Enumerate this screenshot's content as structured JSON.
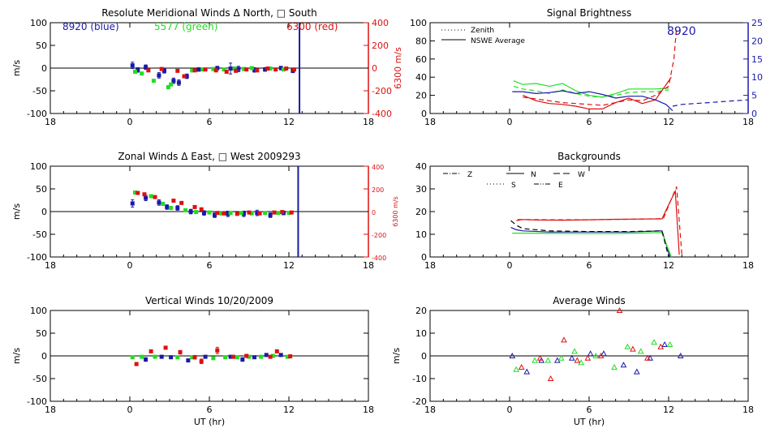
{
  "colors": {
    "blue": "#1a1aa8",
    "green": "#22dd22",
    "red": "#dd1111",
    "axis": "#000000"
  },
  "chart_data": [
    {
      "id": "meridional",
      "type": "scatter",
      "title": "Resolute Meridional Winds Δ North, □ South",
      "xlabel": "",
      "ylabel": "m/s",
      "y2label": "6300 m/s",
      "xticks": [
        "18",
        "0",
        "6",
        "12",
        "18"
      ],
      "yticks": [
        "-100",
        "-50",
        "0",
        "50",
        "100"
      ],
      "y2ticks": [
        "-400",
        "-200",
        "0",
        "200",
        "400"
      ],
      "xlim": [
        -6,
        18
      ],
      "ylim": [
        -100,
        100
      ],
      "y2lim": [
        -400,
        400
      ],
      "legend": [
        "8920 (blue)",
        "5577 (green)",
        "6300 (red)"
      ],
      "vline_x": 12.8,
      "series": [
        {
          "color": "blue",
          "x": [
            0.2,
            0.6,
            1.2,
            2.2,
            2.6,
            3.3,
            3.7,
            4.3,
            5.2,
            6.6,
            7.6,
            8.2,
            9.4,
            10.2,
            11.4,
            12.3
          ],
          "y": [
            6,
            -4,
            2,
            -16,
            -6,
            -28,
            -32,
            -18,
            -3,
            0,
            -1,
            -2,
            -4,
            -3,
            0,
            -6
          ],
          "err": [
            7,
            5,
            5,
            6,
            5,
            6,
            6,
            5,
            4,
            4,
            12,
            6,
            5,
            4,
            4,
            4
          ]
        },
        {
          "color": "green",
          "x": [
            0.4,
            0.9,
            1.8,
            2.9,
            3.1,
            4.7,
            5.5,
            6.3,
            7.1,
            7.9,
            8.6,
            9.2,
            10.6,
            11.6
          ],
          "y": [
            -8,
            -12,
            -28,
            -42,
            -36,
            -5,
            -3,
            -2,
            -3,
            -1,
            -2,
            0,
            -1,
            -3
          ],
          "err": [
            3,
            3,
            3,
            3,
            3,
            3,
            3,
            3,
            3,
            3,
            3,
            3,
            3,
            3
          ]
        },
        {
          "color": "red",
          "x": [
            1.4,
            2.4,
            3.6,
            4.1,
            4.9,
            5.7,
            6.5,
            7.3,
            8.0,
            8.8,
            9.6,
            10.4,
            11.0,
            11.8,
            12.4
          ],
          "y": [
            -5,
            -2,
            -6,
            -18,
            -5,
            -3,
            -5,
            -8,
            -6,
            -3,
            -5,
            -1,
            -3,
            -1,
            -3
          ],
          "err": [
            3,
            3,
            3,
            3,
            3,
            3,
            3,
            3,
            3,
            3,
            3,
            3,
            3,
            3,
            3
          ]
        }
      ]
    },
    {
      "id": "zonal",
      "type": "scatter",
      "title": "Zonal Winds Δ East, □ West 2009293",
      "xlabel": "",
      "ylabel": "m/s",
      "y2label": "6300 m/s",
      "xticks": [
        "18",
        "0",
        "6",
        "12",
        "18"
      ],
      "yticks": [
        "-100",
        "-50",
        "0",
        "50",
        "100"
      ],
      "y2ticks": [
        "-400",
        "-200",
        "0",
        "200",
        "400"
      ],
      "xlim": [
        -6,
        18
      ],
      "ylim": [
        -100,
        100
      ],
      "y2lim": [
        -400,
        400
      ],
      "vline_x": 12.7,
      "series": [
        {
          "color": "blue",
          "x": [
            0.2,
            1.2,
            2.2,
            2.8,
            3.6,
            4.6,
            5.6,
            6.4,
            7.4,
            8.6,
            9.6,
            10.6,
            11.6
          ],
          "y": [
            18,
            30,
            20,
            10,
            8,
            0,
            -3,
            -8,
            -5,
            -5,
            -3,
            -8,
            -3
          ],
          "err": [
            8,
            6,
            6,
            5,
            5,
            5,
            5,
            5,
            6,
            6,
            6,
            5,
            4
          ]
        },
        {
          "color": "green",
          "x": [
            0.4,
            1.6,
            2.5,
            3.1,
            4.2,
            5.0,
            6.0,
            6.9,
            7.6,
            8.4,
            9.2,
            10.2,
            11.2,
            12.0
          ],
          "y": [
            42,
            34,
            17,
            8,
            3,
            -1,
            -2,
            -4,
            -3,
            -3,
            -4,
            -3,
            -3,
            -3
          ],
          "err": [
            3,
            3,
            3,
            3,
            3,
            3,
            3,
            3,
            3,
            3,
            3,
            3,
            3,
            3
          ]
        },
        {
          "color": "red",
          "x": [
            0.6,
            1.1,
            1.9,
            3.3,
            3.9,
            4.9,
            5.4,
            6.6,
            7.1,
            8.1,
            9.0,
            9.8,
            10.9,
            11.5,
            12.2
          ],
          "y": [
            41,
            38,
            32,
            24,
            19,
            10,
            5,
            -3,
            -4,
            -5,
            -2,
            -4,
            -2,
            -1,
            -2
          ],
          "err": [
            3,
            3,
            3,
            3,
            3,
            3,
            3,
            3,
            3,
            3,
            3,
            3,
            3,
            3,
            3
          ]
        }
      ]
    },
    {
      "id": "vertical",
      "type": "scatter",
      "title": "Vertical Winds 10/20/2009",
      "xlabel": "UT (hr)",
      "ylabel": "m/s",
      "xticks": [
        "18",
        "0",
        "6",
        "12",
        "18"
      ],
      "yticks": [
        "-100",
        "-50",
        "0",
        "50",
        "100"
      ],
      "xlim": [
        -6,
        18
      ],
      "ylim": [
        -100,
        100
      ],
      "series": [
        {
          "color": "blue",
          "x": [
            1.2,
            2.4,
            3.1,
            4.4,
            5.7,
            7.6,
            8.5,
            9.4,
            10.3,
            11.4
          ],
          "y": [
            -8,
            -2,
            -3,
            -10,
            -2,
            -2,
            -8,
            -3,
            2,
            2
          ],
          "err": [
            4,
            3,
            3,
            3,
            3,
            3,
            4,
            3,
            3,
            3
          ]
        },
        {
          "color": "green",
          "x": [
            0.2,
            0.9,
            1.9,
            3.6,
            4.7,
            6.3,
            7.2,
            8.1,
            9.0,
            9.9,
            10.8,
            11.9
          ],
          "y": [
            -3,
            -2,
            -2,
            -3,
            -3,
            -5,
            -3,
            -3,
            -2,
            -2,
            0,
            -2
          ],
          "err": [
            2,
            2,
            2,
            2,
            2,
            2,
            2,
            2,
            2,
            2,
            2,
            2
          ]
        },
        {
          "color": "red",
          "x": [
            0.5,
            1.6,
            2.7,
            3.8,
            4.9,
            5.4,
            6.6,
            7.8,
            8.8,
            10.6,
            11.1,
            12.1
          ],
          "y": [
            -18,
            10,
            18,
            8,
            -3,
            -12,
            12,
            -2,
            0,
            -2,
            10,
            -1
          ],
          "err": [
            3,
            3,
            3,
            4,
            4,
            5,
            7,
            3,
            3,
            3,
            3,
            3
          ]
        }
      ]
    },
    {
      "id": "brightness",
      "type": "line",
      "title": "Signal Brightness",
      "xlabel": "",
      "ylabel": "",
      "xticks": [
        "18",
        "0",
        "6",
        "12",
        "18"
      ],
      "yticks": [
        "0",
        "20",
        "40",
        "60",
        "80",
        "100"
      ],
      "y2ticks": [
        "0",
        "5",
        "10",
        "15",
        "20",
        "25"
      ],
      "xlim": [
        -6,
        18
      ],
      "ylim": [
        0,
        100
      ],
      "y2lim": [
        0,
        25
      ],
      "legend": [
        "Zenith",
        "NSWE Average"
      ],
      "annotation": "8920",
      "series": [
        {
          "color": "green",
          "style": "solid",
          "x": [
            0.3,
            1,
            2,
            3,
            4,
            5,
            6,
            7,
            8,
            9,
            10,
            11,
            12
          ],
          "y": [
            36,
            32,
            33,
            30,
            33,
            25,
            20,
            18,
            22,
            27,
            27,
            27,
            28
          ]
        },
        {
          "color": "green",
          "style": "dash",
          "x": [
            0.3,
            1,
            2,
            3,
            4,
            5,
            6,
            7,
            8,
            9,
            10,
            11,
            12
          ],
          "y": [
            30,
            27,
            25,
            22,
            26,
            22,
            19,
            18,
            20,
            23,
            24,
            24,
            26
          ]
        },
        {
          "color": "red",
          "style": "solid",
          "x": [
            1,
            2,
            3,
            4,
            5,
            6,
            7,
            8,
            9,
            10,
            11,
            12.2
          ],
          "y": [
            20,
            14,
            11,
            10,
            8,
            5,
            5,
            12,
            17,
            11,
            15,
            40
          ]
        },
        {
          "color": "red",
          "style": "dash",
          "x": [
            1,
            2,
            3,
            4,
            5,
            6,
            7,
            8,
            9,
            10,
            11,
            12,
            12.4,
            12.6
          ],
          "y": [
            18,
            16,
            14,
            12,
            11,
            10,
            9,
            12,
            15,
            14,
            20,
            30,
            60,
            95
          ]
        },
        {
          "color": "blue",
          "style": "solid",
          "x": [
            0.2,
            1,
            2,
            3,
            4,
            5,
            6,
            7,
            8,
            9,
            10,
            11,
            11.8,
            12.3
          ],
          "y": [
            24,
            24,
            22,
            23,
            25,
            22,
            24,
            21,
            17,
            19,
            19,
            15,
            10,
            3
          ]
        },
        {
          "color": "blue",
          "style": "dash",
          "x": [
            12.3,
            13,
            14,
            15,
            16,
            17,
            18
          ],
          "y": [
            8,
            10,
            11,
            12,
            13,
            14,
            15
          ]
        }
      ]
    },
    {
      "id": "backgrounds",
      "type": "line",
      "title": "Backgrounds",
      "xlabel": "",
      "ylabel": "",
      "xticks": [
        "18",
        "0",
        "6",
        "12",
        "18"
      ],
      "yticks": [
        "0",
        "10",
        "20",
        "30",
        "40"
      ],
      "xlim": [
        -6,
        18
      ],
      "ylim": [
        0,
        40
      ],
      "legend": [
        "Z",
        "N",
        "W",
        "S",
        "E"
      ],
      "series": [
        {
          "color": "red",
          "style": "solid",
          "x": [
            0.5,
            1,
            2,
            4,
            6,
            8,
            10,
            11.5,
            12,
            12.5,
            12.8
          ],
          "y": [
            16,
            16.5,
            16.3,
            16.2,
            16.4,
            16.6,
            16.7,
            16.8,
            23,
            29,
            1
          ]
        },
        {
          "color": "red",
          "style": "dash",
          "x": [
            0.6,
            1,
            3,
            6,
            9,
            11.6,
            12.1,
            12.6,
            13
          ],
          "y": [
            16.5,
            16.5,
            16.4,
            16.4,
            16.6,
            16.9,
            24,
            31,
            1
          ]
        },
        {
          "color": "blue",
          "style": "solid",
          "x": [
            0.1,
            0.5,
            1,
            3,
            6,
            9,
            11.5,
            11.9,
            12.1
          ],
          "y": [
            13,
            12,
            11.5,
            11,
            11,
            11,
            11.5,
            4,
            0
          ]
        },
        {
          "color": "green",
          "style": "solid",
          "x": [
            0.2,
            1,
            3,
            6,
            9,
            11.5,
            12,
            12.2
          ],
          "y": [
            10.5,
            10.5,
            10.4,
            10.3,
            10.4,
            10.8,
            3,
            0
          ]
        },
        {
          "color": "black",
          "style": "dash",
          "x": [
            0.1,
            0.5,
            1,
            3,
            6,
            9,
            11.5,
            12
          ],
          "y": [
            16,
            14,
            12.5,
            11.5,
            11.2,
            11.2,
            11.5,
            0
          ]
        }
      ]
    },
    {
      "id": "average",
      "type": "scatter",
      "title": "Average Winds",
      "xlabel": "UT (hr)",
      "ylabel": "m/s",
      "xticks": [
        "18",
        "0",
        "6",
        "12",
        "18"
      ],
      "yticks": [
        "-20",
        "-10",
        "0",
        "10",
        "20"
      ],
      "xlim": [
        -6,
        18
      ],
      "ylim": [
        -20,
        20
      ],
      "series": [
        {
          "color": "blue",
          "marker": "triangle",
          "x": [
            0.2,
            1.3,
            2.4,
            3.6,
            4.7,
            6.1,
            7.1,
            8.6,
            9.6,
            10.6,
            11.7,
            12.9
          ],
          "y": [
            0,
            -7,
            -2,
            -2,
            -1,
            1,
            1,
            -4,
            -7,
            -1,
            5,
            0
          ]
        },
        {
          "color": "green",
          "marker": "triangle",
          "x": [
            0.5,
            1.9,
            2.9,
            3.9,
            4.9,
            5.4,
            6.5,
            7.9,
            8.9,
            9.9,
            10.9,
            12.1
          ],
          "y": [
            -6,
            -2,
            -2,
            -1,
            2,
            -3,
            0,
            -5,
            4,
            2,
            6,
            5
          ]
        },
        {
          "color": "red",
          "marker": "triangle",
          "x": [
            0.9,
            2.3,
            3.1,
            4.1,
            5.1,
            5.9,
            6.9,
            8.3,
            9.3,
            10.4,
            11.4
          ],
          "y": [
            -5,
            -1,
            -10,
            7,
            -2,
            -1,
            0,
            20,
            3,
            -1,
            4
          ]
        }
      ]
    }
  ]
}
